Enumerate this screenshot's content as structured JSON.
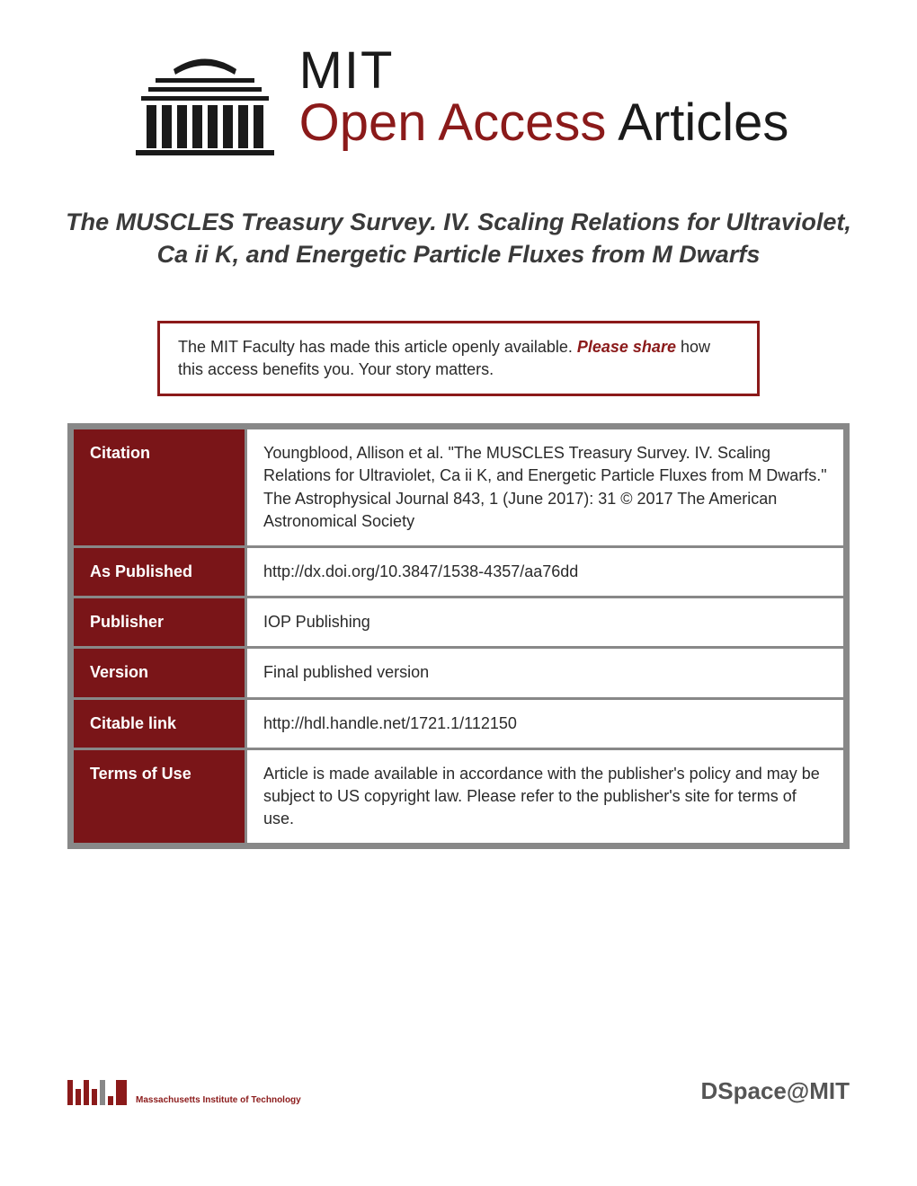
{
  "header": {
    "mit": "MIT",
    "open_access": "Open Access",
    "articles": " Articles"
  },
  "title": "The MUSCLES Treasury Survey. IV. Scaling Relations for Ultraviolet, Ca ii K, and Energetic Particle Fluxes from M Dwarfs",
  "info_box": {
    "prefix": "The MIT Faculty has made this article openly available. ",
    "share": "Please share",
    "suffix": " how this access benefits you. Your story matters."
  },
  "table": {
    "rows": [
      {
        "label": "Citation",
        "value": "Youngblood, Allison et al. \"The MUSCLES Treasury Survey. IV. Scaling Relations for Ultraviolet, Ca ii K, and Energetic Particle Fluxes from M Dwarfs.\" The Astrophysical Journal 843, 1 (June 2017): 31 © 2017 The American Astronomical Society"
      },
      {
        "label": "As Published",
        "value": "http://dx.doi.org/10.3847/1538-4357/aa76dd"
      },
      {
        "label": "Publisher",
        "value": "IOP Publishing"
      },
      {
        "label": "Version",
        "value": "Final published version"
      },
      {
        "label": "Citable link",
        "value": "http://hdl.handle.net/1721.1/112150"
      },
      {
        "label": "Terms of Use",
        "value": "Article is made available in accordance with the publisher's policy and may be subject to US copyright law. Please refer to the publisher's site for terms of use."
      }
    ]
  },
  "footer": {
    "mit_text": "Massachusetts Institute of Technology",
    "dspace": "DSpace@MIT"
  },
  "colors": {
    "brand_red": "#8b1a1a",
    "table_red": "#7a1518",
    "dark": "#1a1a1a",
    "border_gray": "#888"
  }
}
